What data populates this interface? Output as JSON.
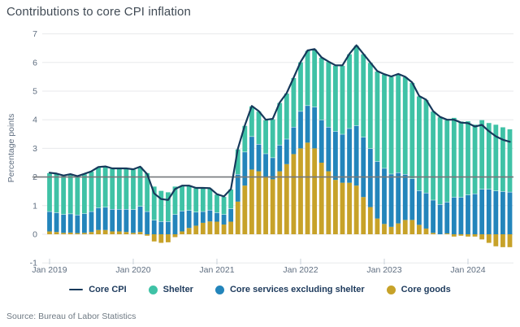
{
  "title": "Contributions to core CPI inflation",
  "y_axis_title": "Percentage points",
  "source": "Source: Bureau of Labor Statistics",
  "colors": {
    "core_cpi_line": "#16395b",
    "shelter": "#3fc2a6",
    "core_services_ex_shelter": "#2385bb",
    "core_goods": "#c7a229",
    "reference_line": "#75787b",
    "gridline": "#e8eaec",
    "axis_text": "#5f6e80",
    "tick_mark": "#c9d2da",
    "legend_text": "#1d3a5c",
    "title_text": "#414b55",
    "source_text": "#6e7983",
    "background": "#ffffff"
  },
  "legend": {
    "items": [
      {
        "label": "Core CPI",
        "swatch": "line",
        "color": "#16395b"
      },
      {
        "label": "Shelter",
        "swatch": "dot",
        "color": "#3fc2a6"
      },
      {
        "label": "Core services excluding shelter",
        "swatch": "dot",
        "color": "#2385bb"
      },
      {
        "label": "Core goods",
        "swatch": "dot",
        "color": "#c7a229"
      }
    ]
  },
  "chart_data": {
    "type": "bar",
    "subtype": "stacked-monthly-bars-with-line-overlay",
    "title": "Contributions to core CPI inflation",
    "ylabel": "Percentage points",
    "ylim": [
      -1,
      7
    ],
    "yticks": [
      7,
      6,
      5,
      4,
      3,
      2,
      1,
      0,
      -1
    ],
    "reference_line_y": 2,
    "grid": true,
    "legend_position": "bottom",
    "x": [
      "2019-01",
      "2019-02",
      "2019-03",
      "2019-04",
      "2019-05",
      "2019-06",
      "2019-07",
      "2019-08",
      "2019-09",
      "2019-10",
      "2019-11",
      "2019-12",
      "2020-01",
      "2020-02",
      "2020-03",
      "2020-04",
      "2020-05",
      "2020-06",
      "2020-07",
      "2020-08",
      "2020-09",
      "2020-10",
      "2020-11",
      "2020-12",
      "2021-01",
      "2021-02",
      "2021-03",
      "2021-04",
      "2021-05",
      "2021-06",
      "2021-07",
      "2021-08",
      "2021-09",
      "2021-10",
      "2021-11",
      "2021-12",
      "2022-01",
      "2022-02",
      "2022-03",
      "2022-04",
      "2022-05",
      "2022-06",
      "2022-07",
      "2022-08",
      "2022-09",
      "2022-10",
      "2022-11",
      "2022-12",
      "2023-01",
      "2023-02",
      "2023-03",
      "2023-04",
      "2023-05",
      "2023-06",
      "2023-07",
      "2023-08",
      "2023-09",
      "2023-10",
      "2023-11",
      "2023-12",
      "2024-01",
      "2024-02",
      "2024-03",
      "2024-04",
      "2024-05",
      "2024-06",
      "2024-07"
    ],
    "xticks": [
      {
        "label": "Jan 2019",
        "index": 0
      },
      {
        "label": "Jan 2020",
        "index": 12
      },
      {
        "label": "Jan 2021",
        "index": 24
      },
      {
        "label": "Jan 2022",
        "index": 36
      },
      {
        "label": "Jan 2023",
        "index": 48
      },
      {
        "label": "Jan 2024",
        "index": 60
      }
    ],
    "series": [
      {
        "name": "Core goods",
        "color": "#c7a229",
        "values": [
          0.1,
          0.08,
          0.05,
          0.06,
          0.04,
          0.05,
          0.08,
          0.15,
          0.15,
          0.1,
          0.1,
          0.08,
          0.05,
          0.08,
          -0.05,
          -0.25,
          -0.3,
          -0.28,
          -0.1,
          0.1,
          0.22,
          0.3,
          0.4,
          0.45,
          0.44,
          0.34,
          0.44,
          1.14,
          1.7,
          2.26,
          2.2,
          2.0,
          1.92,
          2.2,
          2.45,
          2.8,
          3.0,
          3.2,
          3.0,
          2.5,
          2.2,
          1.9,
          1.8,
          1.8,
          1.7,
          1.3,
          0.95,
          0.55,
          0.36,
          0.26,
          0.38,
          0.5,
          0.5,
          0.33,
          0.2,
          0.05,
          0.0,
          0.03,
          -0.08,
          -0.05,
          -0.08,
          -0.08,
          -0.18,
          -0.3,
          -0.42,
          -0.45,
          -0.45
        ]
      },
      {
        "name": "Core services excluding shelter",
        "color": "#2385bb",
        "values": [
          0.7,
          0.68,
          0.65,
          0.66,
          0.64,
          0.68,
          0.72,
          0.78,
          0.8,
          0.78,
          0.78,
          0.8,
          0.82,
          0.9,
          0.8,
          0.5,
          0.45,
          0.45,
          0.7,
          0.72,
          0.62,
          0.48,
          0.4,
          0.4,
          0.32,
          0.36,
          0.46,
          0.96,
          1.18,
          1.16,
          0.95,
          0.82,
          0.76,
          0.92,
          0.88,
          0.95,
          1.3,
          1.3,
          1.45,
          1.5,
          1.55,
          1.7,
          1.7,
          1.9,
          2.1,
          2.1,
          2.05,
          2.0,
          1.95,
          1.85,
          1.78,
          1.6,
          1.45,
          1.2,
          1.25,
          1.15,
          1.05,
          1.1,
          1.3,
          1.3,
          1.38,
          1.42,
          1.58,
          1.58,
          1.52,
          1.5,
          1.48
        ]
      },
      {
        "name": "Shelter",
        "color": "#3fc2a6",
        "values": [
          1.35,
          1.36,
          1.35,
          1.38,
          1.35,
          1.38,
          1.4,
          1.42,
          1.42,
          1.42,
          1.42,
          1.42,
          1.4,
          1.38,
          1.35,
          1.18,
          1.08,
          1.03,
          0.98,
          0.88,
          0.86,
          0.84,
          0.82,
          0.76,
          0.64,
          0.62,
          0.68,
          0.88,
          0.92,
          1.06,
          1.15,
          1.18,
          1.35,
          1.48,
          1.6,
          1.72,
          1.72,
          1.92,
          2.02,
          2.18,
          2.28,
          2.3,
          2.4,
          2.6,
          2.8,
          2.9,
          3.0,
          3.15,
          3.28,
          3.4,
          3.44,
          3.4,
          3.35,
          3.3,
          3.25,
          3.1,
          3.05,
          2.87,
          2.78,
          2.65,
          2.58,
          2.42,
          2.42,
          2.32,
          2.32,
          2.25,
          2.2
        ]
      }
    ],
    "line_series": {
      "name": "Core CPI",
      "color": "#16395b",
      "values": [
        2.15,
        2.12,
        2.05,
        2.1,
        2.03,
        2.11,
        2.2,
        2.35,
        2.37,
        2.3,
        2.3,
        2.3,
        2.27,
        2.36,
        2.1,
        1.43,
        1.23,
        1.2,
        1.58,
        1.7,
        1.7,
        1.62,
        1.62,
        1.61,
        1.4,
        1.32,
        1.58,
        2.98,
        3.8,
        4.48,
        4.3,
        4.0,
        4.03,
        4.6,
        4.93,
        5.47,
        6.02,
        6.42,
        6.47,
        6.18,
        6.03,
        5.9,
        5.9,
        6.3,
        6.6,
        6.3,
        6.0,
        5.7,
        5.59,
        5.51,
        5.6,
        5.5,
        5.3,
        4.83,
        4.7,
        4.3,
        4.1,
        4.0,
        4.0,
        3.9,
        3.88,
        3.76,
        3.82,
        3.6,
        3.42,
        3.3,
        3.23
      ]
    }
  }
}
